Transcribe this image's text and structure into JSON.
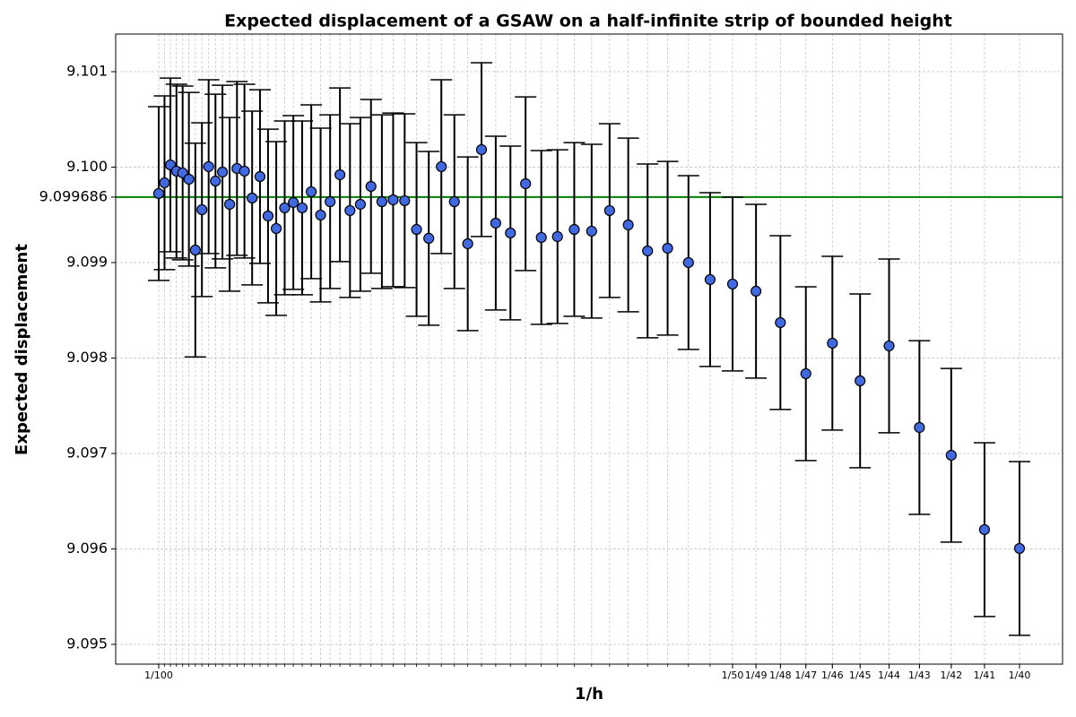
{
  "chart_data": {
    "type": "errorbar",
    "title": "Expected displacement of a GSAW on a half-infinite strip of bounded height",
    "xlabel": "1/h",
    "ylabel": "Expected displacement",
    "x": [
      0.01,
      0.010101,
      0.010204,
      0.010309,
      0.010417,
      0.010526,
      0.010638,
      0.010753,
      0.01087,
      0.010989,
      0.011111,
      0.011236,
      0.011364,
      0.011494,
      0.011628,
      0.011765,
      0.011905,
      0.012048,
      0.012195,
      0.012346,
      0.0125,
      0.012658,
      0.012821,
      0.012987,
      0.013158,
      0.013333,
      0.013514,
      0.013699,
      0.013889,
      0.014085,
      0.014286,
      0.014493,
      0.014706,
      0.014925,
      0.015152,
      0.015385,
      0.015625,
      0.015873,
      0.016129,
      0.016393,
      0.016667,
      0.016949,
      0.017241,
      0.017544,
      0.017857,
      0.018182,
      0.018519,
      0.018868,
      0.019231,
      0.019608,
      0.02,
      0.020408,
      0.020833,
      0.021277,
      0.021739,
      0.022222,
      0.022727,
      0.023256,
      0.02381,
      0.02439,
      0.025
    ],
    "values": [
      9.099723,
      9.099836,
      9.100023,
      9.099958,
      9.099939,
      9.099873,
      9.099131,
      9.099554,
      9.100005,
      9.099854,
      9.099948,
      9.09961,
      9.099986,
      9.099958,
      9.099676,
      9.099901,
      9.099488,
      9.099357,
      9.099573,
      9.099629,
      9.099573,
      9.099742,
      9.099498,
      9.099638,
      9.09992,
      9.099545,
      9.09961,
      9.099798,
      9.099638,
      9.099657,
      9.099648,
      9.099347,
      9.099254,
      9.100005,
      9.099638,
      9.099197,
      9.100183,
      9.099413,
      9.09931,
      9.099826,
      9.099263,
      9.099272,
      9.099347,
      9.099329,
      9.099545,
      9.099394,
      9.099122,
      9.09915,
      9.099,
      9.098822,
      9.098775,
      9.0987,
      9.098371,
      9.097836,
      9.098155,
      9.097761,
      9.098127,
      9.097272,
      9.096981,
      9.096202,
      9.096005
    ],
    "errors": [
      0.00091,
      0.00091,
      0.00091,
      0.00091,
      0.00091,
      0.00091,
      0.00112,
      0.00091,
      0.00091,
      0.00091,
      0.00091,
      0.00091,
      0.00091,
      0.00091,
      0.00091,
      0.00091,
      0.00091,
      0.00091,
      0.00091,
      0.00091,
      0.00091,
      0.00091,
      0.00091,
      0.00091,
      0.00091,
      0.00091,
      0.00091,
      0.00091,
      0.00091,
      0.00091,
      0.00091,
      0.00091,
      0.00091,
      0.00091,
      0.00091,
      0.00091,
      0.00091,
      0.00091,
      0.00091,
      0.00091,
      0.00091,
      0.00091,
      0.00091,
      0.00091,
      0.00091,
      0.00091,
      0.00091,
      0.00091,
      0.00091,
      0.00091,
      0.00091,
      0.00091,
      0.00091,
      0.00091,
      0.00091,
      0.00091,
      0.00091,
      0.00091,
      0.00091,
      0.00091,
      0.00091
    ],
    "color": "#4169e1",
    "edge_color": "#000000",
    "hline": {
      "value": 9.099686,
      "color": "#008000"
    },
    "xlim": [
      0.00925,
      0.02575
    ],
    "ylim": [
      9.094793,
      9.101394
    ],
    "xticks": [
      {
        "value": 0.01,
        "label": "1/100"
      },
      {
        "value": 0.02,
        "label": "1/50"
      },
      {
        "value": 0.020408,
        "label": "1/49"
      },
      {
        "value": 0.020833,
        "label": "1/48"
      },
      {
        "value": 0.021277,
        "label": "1/47"
      },
      {
        "value": 0.021739,
        "label": "1/46"
      },
      {
        "value": 0.022222,
        "label": "1/45"
      },
      {
        "value": 0.022727,
        "label": "1/44"
      },
      {
        "value": 0.023256,
        "label": "1/43"
      },
      {
        "value": 0.02381,
        "label": "1/42"
      },
      {
        "value": 0.02439,
        "label": "1/41"
      },
      {
        "value": 0.025,
        "label": "1/40"
      }
    ],
    "yticks": [
      9.095,
      9.096,
      9.097,
      9.098,
      9.099,
      9.099686,
      {
        "value": 9.1,
        "label": "9.100"
      },
      9.101
    ],
    "grid": true
  }
}
